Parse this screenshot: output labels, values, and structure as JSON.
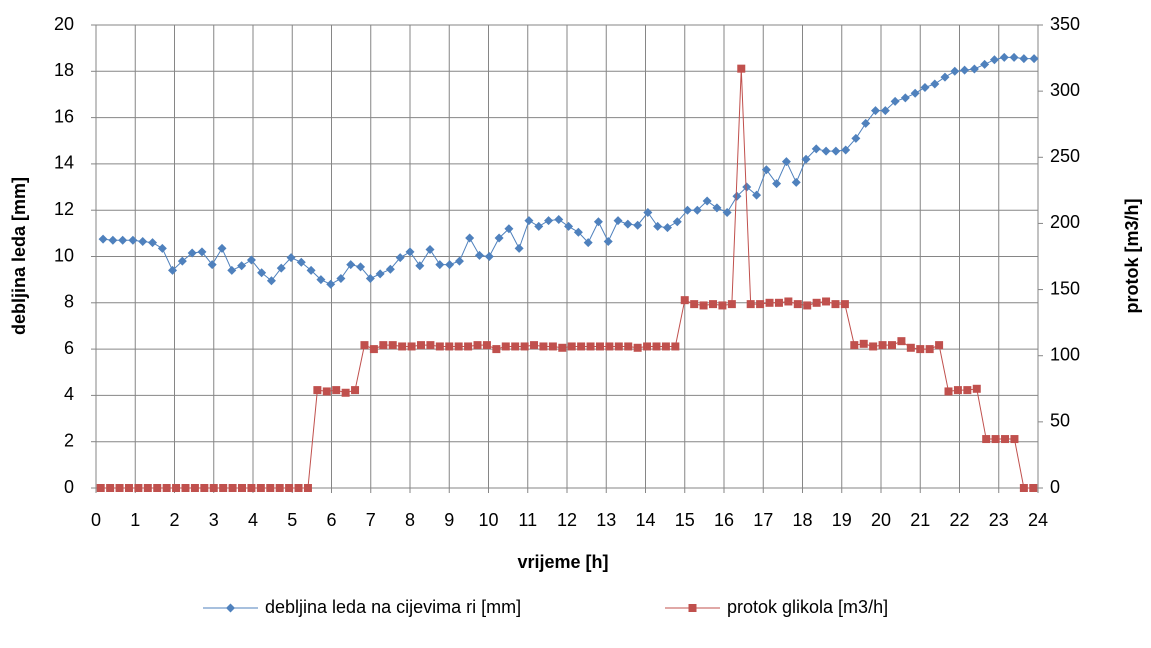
{
  "chart_data": {
    "type": "line",
    "xlabel": "vrijeme [h]",
    "ylabel": "debljina leda [mm]",
    "y2label": "protok [m3/h]",
    "xlim": [
      0,
      24
    ],
    "xticks": [
      0,
      1,
      2,
      3,
      4,
      5,
      6,
      7,
      8,
      9,
      10,
      11,
      12,
      13,
      14,
      15,
      16,
      17,
      18,
      19,
      20,
      21,
      22,
      23,
      24
    ],
    "ylim": [
      0,
      20
    ],
    "yticks": [
      0,
      2,
      4,
      6,
      8,
      10,
      12,
      14,
      16,
      18,
      20
    ],
    "y2lim": [
      0,
      350
    ],
    "y2ticks": [
      0,
      50,
      100,
      150,
      200,
      250,
      300,
      350
    ],
    "grid": true,
    "legend": "bottom",
    "series": [
      {
        "name": "debljina leda na cijevima ri [mm]",
        "color": "#4f81bd",
        "marker": "diamond",
        "x": [
          0.18,
          0.43,
          0.68,
          0.94,
          1.19,
          1.44,
          1.69,
          1.95,
          2.2,
          2.45,
          2.7,
          2.96,
          3.21,
          3.46,
          3.71,
          3.96,
          4.22,
          4.47,
          4.72,
          4.97,
          5.23,
          5.48,
          5.73,
          5.98,
          6.24,
          6.49,
          6.74,
          6.99,
          7.24,
          7.5,
          7.75,
          8.0,
          8.25,
          8.51,
          8.76,
          9.01,
          9.26,
          9.52,
          9.77,
          10.02,
          10.27,
          10.52,
          10.78,
          11.03,
          11.28,
          11.53,
          11.79,
          12.04,
          12.29,
          12.54,
          12.8,
          13.05,
          13.3,
          13.55,
          13.8,
          14.06,
          14.31,
          14.56,
          14.81,
          15.07,
          15.32,
          15.57,
          15.82,
          16.08,
          16.33,
          16.58,
          16.83,
          17.08,
          17.34,
          17.59,
          17.84,
          18.09,
          18.35,
          18.6,
          18.85,
          19.1,
          19.36,
          19.61,
          19.86,
          20.11,
          20.36,
          20.62,
          20.87,
          21.12,
          21.37,
          21.63,
          21.88,
          22.13,
          22.38,
          22.64,
          22.89,
          23.14,
          23.39,
          23.64,
          23.9
        ],
        "values": [
          10.75,
          10.7,
          10.7,
          10.7,
          10.65,
          10.6,
          10.35,
          9.4,
          9.8,
          10.15,
          10.2,
          9.65,
          10.35,
          9.4,
          9.6,
          9.85,
          9.3,
          8.95,
          9.5,
          9.95,
          9.75,
          9.4,
          9.0,
          8.8,
          9.05,
          9.65,
          9.55,
          9.05,
          9.25,
          9.45,
          9.95,
          10.2,
          9.6,
          10.3,
          9.65,
          9.65,
          9.8,
          10.8,
          10.05,
          10.0,
          10.8,
          11.2,
          10.35,
          11.55,
          11.3,
          11.55,
          11.6,
          11.3,
          11.05,
          10.6,
          11.5,
          10.65,
          11.55,
          11.4,
          11.35,
          11.9,
          11.3,
          11.25,
          11.5,
          12.0,
          12.0,
          12.4,
          12.1,
          11.9,
          12.6,
          13.0,
          12.65,
          13.75,
          13.15,
          14.1,
          13.2,
          14.2,
          14.65,
          14.55,
          14.55,
          14.6,
          15.1,
          15.75,
          16.3,
          16.3,
          16.7,
          16.85,
          17.05,
          17.3,
          17.45,
          17.75,
          18.0,
          18.05,
          18.1,
          18.3,
          18.5,
          18.6,
          18.6,
          18.55,
          18.55
        ]
      },
      {
        "name": "protok glikola [m3/h]",
        "color": "#c0504d",
        "marker": "square",
        "axis": "y2",
        "x": [
          0.12,
          0.36,
          0.6,
          0.84,
          1.08,
          1.32,
          1.56,
          1.8,
          2.04,
          2.28,
          2.52,
          2.76,
          3.0,
          3.24,
          3.48,
          3.72,
          3.96,
          4.2,
          4.44,
          4.68,
          4.92,
          5.16,
          5.4,
          5.64,
          5.88,
          6.12,
          6.36,
          6.6,
          6.84,
          7.08,
          7.32,
          7.56,
          7.8,
          8.04,
          8.28,
          8.52,
          8.76,
          9.0,
          9.24,
          9.48,
          9.72,
          9.96,
          10.2,
          10.44,
          10.68,
          10.92,
          11.16,
          11.4,
          11.64,
          11.88,
          12.12,
          12.36,
          12.6,
          12.84,
          13.08,
          13.32,
          13.56,
          13.8,
          14.04,
          14.28,
          14.52,
          14.76,
          15.0,
          15.24,
          15.48,
          15.72,
          15.96,
          16.2,
          16.44,
          16.68,
          16.92,
          17.16,
          17.4,
          17.64,
          17.88,
          18.12,
          18.36,
          18.6,
          18.84,
          19.08,
          19.32,
          19.56,
          19.8,
          20.04,
          20.28,
          20.52,
          20.76,
          21.0,
          21.24,
          21.48,
          21.72,
          21.96,
          22.2,
          22.44,
          22.68,
          22.92,
          23.16,
          23.4,
          23.64,
          23.88
        ],
        "values": [
          0,
          0,
          0,
          0,
          0,
          0,
          0,
          0,
          0,
          0,
          0,
          0,
          0,
          0,
          0,
          0,
          0,
          0,
          0,
          0,
          0,
          0,
          0,
          74,
          73,
          74,
          72,
          74,
          108,
          105,
          108,
          108,
          107,
          107,
          108,
          108,
          107,
          107,
          107,
          107,
          108,
          108,
          105,
          107,
          107,
          107,
          108,
          107,
          107,
          106,
          107,
          107,
          107,
          107,
          107,
          107,
          107,
          106,
          107,
          107,
          107,
          107,
          142,
          139,
          138,
          139,
          138,
          139,
          317,
          139,
          139,
          140,
          140,
          141,
          139,
          138,
          140,
          141,
          139,
          139,
          108,
          109,
          107,
          108,
          108,
          111,
          106,
          105,
          105,
          108,
          73,
          74,
          74,
          75,
          37,
          37,
          37,
          37,
          0,
          0
        ]
      }
    ]
  }
}
